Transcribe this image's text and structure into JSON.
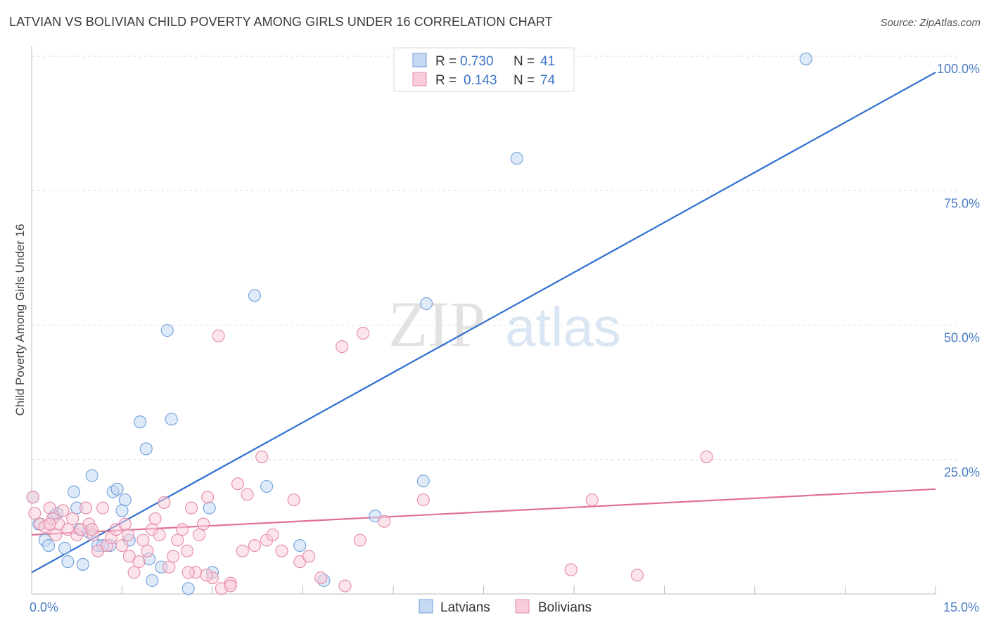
{
  "header": {
    "title": "LATVIAN VS BOLIVIAN CHILD POVERTY AMONG GIRLS UNDER 16 CORRELATION CHART",
    "source": "Source: ZipAtlas.com"
  },
  "watermark": {
    "zip": "ZIP",
    "atlas": "atlas"
  },
  "chart_data": {
    "type": "scatter",
    "title": "LATVIAN VS BOLIVIAN CHILD POVERTY AMONG GIRLS UNDER 16 CORRELATION CHART",
    "xlabel": "",
    "ylabel": "Child Poverty Among Girls Under 16",
    "xlim": [
      0,
      15
    ],
    "ylim": [
      0,
      100
    ],
    "x_ticks": [
      {
        "value": 0,
        "label": "0.0%"
      },
      {
        "value": 15,
        "label": "15.0%"
      }
    ],
    "y_ticks": [
      {
        "value": 25,
        "label": "25.0%"
      },
      {
        "value": 50,
        "label": "50.0%"
      },
      {
        "value": 75,
        "label": "75.0%"
      },
      {
        "value": 100,
        "label": "100.0%"
      }
    ],
    "grid": true,
    "legend_position": "top-center",
    "stats": [
      {
        "r_label": "R =",
        "r_value": "0.730",
        "n_label": "N =",
        "n_value": "41"
      },
      {
        "r_label": "R =",
        "r_value": "0.143",
        "n_label": "N =",
        "n_value": "74"
      }
    ],
    "series": [
      {
        "name": "Latvians",
        "color": "#6f9fdc",
        "fill": "#c5d9f3",
        "line_color": "#2f6fd0",
        "trend": [
          [
            0,
            4
          ],
          [
            15,
            97
          ]
        ],
        "points": [
          [
            0.02,
            18
          ],
          [
            0.12,
            13
          ],
          [
            0.22,
            10
          ],
          [
            0.28,
            9
          ],
          [
            0.38,
            14.5
          ],
          [
            0.42,
            15
          ],
          [
            0.55,
            8.5
          ],
          [
            0.6,
            6
          ],
          [
            0.7,
            19
          ],
          [
            0.75,
            16
          ],
          [
            0.8,
            12
          ],
          [
            0.95,
            11.5
          ],
          [
            1.0,
            22
          ],
          [
            1.1,
            9
          ],
          [
            1.3,
            9
          ],
          [
            1.35,
            19
          ],
          [
            1.42,
            19.5
          ],
          [
            1.5,
            15.5
          ],
          [
            1.55,
            17.5
          ],
          [
            1.62,
            10
          ],
          [
            1.8,
            32
          ],
          [
            1.9,
            27
          ],
          [
            1.95,
            6.5
          ],
          [
            2.0,
            2.5
          ],
          [
            2.15,
            5
          ],
          [
            2.25,
            49
          ],
          [
            2.32,
            32.5
          ],
          [
            2.6,
            1
          ],
          [
            2.95,
            16
          ],
          [
            3.0,
            4
          ],
          [
            3.7,
            55.5
          ],
          [
            3.9,
            20
          ],
          [
            4.45,
            9
          ],
          [
            4.85,
            2.5
          ],
          [
            5.7,
            14.5
          ],
          [
            6.5,
            21
          ],
          [
            6.55,
            54
          ],
          [
            8.05,
            81
          ],
          [
            12.85,
            99.5
          ],
          [
            0.85,
            5.5
          ],
          [
            1.18,
            9
          ]
        ]
      },
      {
        "name": "Bolivians",
        "color": "#e68aa8",
        "fill": "#f8cdd9",
        "line_color": "#e0709a",
        "trend": [
          [
            0,
            11
          ],
          [
            15,
            19.5
          ]
        ],
        "points": [
          [
            0.02,
            18
          ],
          [
            0.05,
            15
          ],
          [
            0.15,
            13
          ],
          [
            0.22,
            12.5
          ],
          [
            0.3,
            16
          ],
          [
            0.35,
            14
          ],
          [
            0.45,
            13
          ],
          [
            0.52,
            15.5
          ],
          [
            0.6,
            12
          ],
          [
            0.68,
            14
          ],
          [
            0.75,
            11
          ],
          [
            0.82,
            12
          ],
          [
            0.9,
            16
          ],
          [
            0.95,
            13
          ],
          [
            1.02,
            11
          ],
          [
            1.1,
            8
          ],
          [
            1.18,
            16
          ],
          [
            1.25,
            9
          ],
          [
            1.32,
            10.5
          ],
          [
            1.4,
            12
          ],
          [
            1.5,
            9
          ],
          [
            1.55,
            13
          ],
          [
            1.62,
            7
          ],
          [
            1.7,
            4
          ],
          [
            1.78,
            6
          ],
          [
            1.85,
            10
          ],
          [
            1.92,
            8
          ],
          [
            2.0,
            12
          ],
          [
            2.05,
            14
          ],
          [
            2.12,
            11
          ],
          [
            2.2,
            17
          ],
          [
            2.28,
            5
          ],
          [
            2.35,
            7
          ],
          [
            2.42,
            10
          ],
          [
            2.5,
            12
          ],
          [
            2.58,
            8
          ],
          [
            2.65,
            16
          ],
          [
            2.72,
            4
          ],
          [
            2.78,
            11
          ],
          [
            2.85,
            13
          ],
          [
            2.92,
            18
          ],
          [
            3.0,
            3
          ],
          [
            3.1,
            48
          ],
          [
            3.15,
            1
          ],
          [
            3.3,
            2
          ],
          [
            3.42,
            20.5
          ],
          [
            3.5,
            8
          ],
          [
            3.58,
            18.5
          ],
          [
            3.7,
            9
          ],
          [
            3.82,
            25.5
          ],
          [
            3.9,
            10
          ],
          [
            4.0,
            11
          ],
          [
            4.15,
            8
          ],
          [
            4.35,
            17.5
          ],
          [
            4.45,
            6
          ],
          [
            4.6,
            7
          ],
          [
            4.8,
            3
          ],
          [
            5.15,
            46
          ],
          [
            5.2,
            1.5
          ],
          [
            5.45,
            10
          ],
          [
            5.5,
            48.5
          ],
          [
            5.85,
            13.5
          ],
          [
            6.5,
            17.5
          ],
          [
            8.95,
            4.5
          ],
          [
            9.3,
            17.5
          ],
          [
            10.05,
            3.5
          ],
          [
            11.2,
            25.5
          ],
          [
            2.6,
            4
          ],
          [
            1.0,
            12
          ],
          [
            0.3,
            13
          ],
          [
            0.4,
            11
          ],
          [
            1.6,
            11
          ],
          [
            2.9,
            3.5
          ],
          [
            3.3,
            1.5
          ]
        ]
      }
    ]
  }
}
